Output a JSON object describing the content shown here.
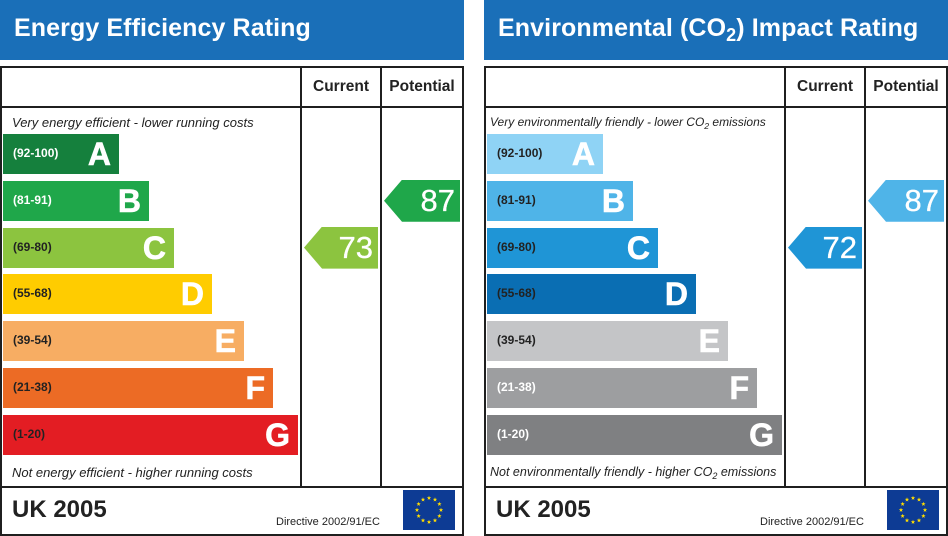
{
  "chart_data": [
    {
      "type": "bar",
      "title": "Energy Efficiency Rating",
      "column_headers": [
        "Current",
        "Potential"
      ],
      "top_caption": "Very energy efficient - lower running costs",
      "bottom_caption": "Not energy efficient - higher running costs",
      "bands": [
        {
          "letter": "A",
          "range": "(92-100)",
          "color": "#15803d",
          "range_color": "#ffffff"
        },
        {
          "letter": "B",
          "range": "(81-91)",
          "color": "#1fa74a",
          "range_color": "#ffffff"
        },
        {
          "letter": "C",
          "range": "(69-80)",
          "color": "#8cc43f",
          "range_color": "#222222"
        },
        {
          "letter": "D",
          "range": "(55-68)",
          "color": "#ffcc00",
          "range_color": "#222222"
        },
        {
          "letter": "E",
          "range": "(39-54)",
          "color": "#f7ad63",
          "range_color": "#222222"
        },
        {
          "letter": "F",
          "range": "(21-38)",
          "color": "#ec6b25",
          "range_color": "#222222"
        },
        {
          "letter": "G",
          "range": "(1-20)",
          "color": "#e31d23",
          "range_color": "#222222"
        }
      ],
      "current": {
        "value": 73,
        "band": "C",
        "color": "#8cc43f"
      },
      "potential": {
        "value": 87,
        "band": "B",
        "color": "#1fa74a"
      },
      "footer": {
        "label": "UK 2005",
        "directive": "Directive 2002/91/EC"
      }
    },
    {
      "type": "bar",
      "title": "Environmental (CO2) Impact Rating",
      "column_headers": [
        "Current",
        "Potential"
      ],
      "top_caption": "Very environmentally friendly - lower CO2 emissions",
      "bottom_caption": "Not environmentally friendly - higher CO2 emissions",
      "bands": [
        {
          "letter": "A",
          "range": "(92-100)",
          "color": "#8fd3f5",
          "range_color": "#222222"
        },
        {
          "letter": "B",
          "range": "(81-91)",
          "color": "#4fb4e8",
          "range_color": "#222222"
        },
        {
          "letter": "C",
          "range": "(69-80)",
          "color": "#1f95d6",
          "range_color": "#222222"
        },
        {
          "letter": "D",
          "range": "(55-68)",
          "color": "#0a6eb3",
          "range_color": "#222222"
        },
        {
          "letter": "E",
          "range": "(39-54)",
          "color": "#c4c5c7",
          "range_color": "#222222"
        },
        {
          "letter": "F",
          "range": "(21-38)",
          "color": "#9d9ea0",
          "range_color": "#ffffff"
        },
        {
          "letter": "G",
          "range": "(1-20)",
          "color": "#7f8082",
          "range_color": "#ffffff"
        }
      ],
      "current": {
        "value": 72,
        "band": "C",
        "color": "#1f95d6"
      },
      "potential": {
        "value": 87,
        "band": "B",
        "color": "#4fb4e8"
      },
      "footer": {
        "label": "UK 2005",
        "directive": "Directive 2002/91/EC"
      }
    }
  ],
  "header_color": "#1a6fb8",
  "eu_flag": {
    "icon": "eu-flag-icon",
    "color": "#0d3b94",
    "star_color": "#ffdd00"
  }
}
